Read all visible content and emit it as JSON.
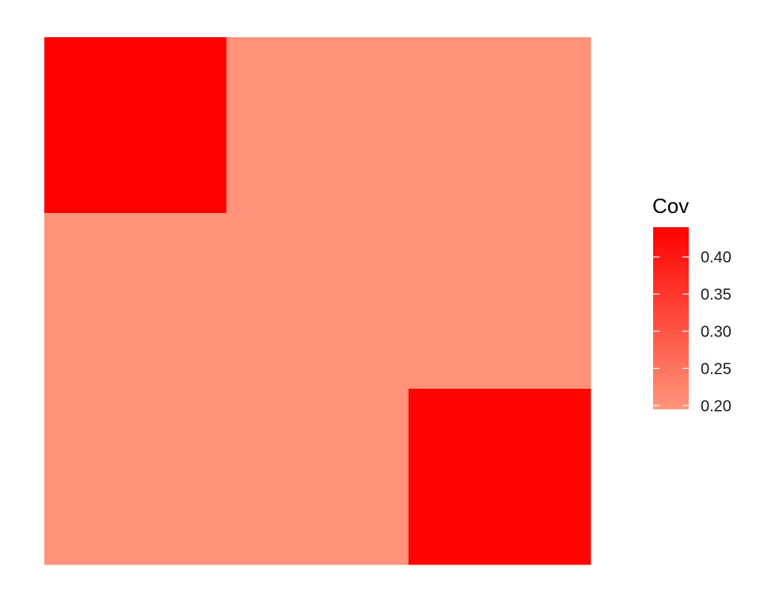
{
  "chart_data": {
    "type": "heatmap",
    "title": "",
    "xlabel": "",
    "ylabel": "",
    "rows": 3,
    "cols": 3,
    "values": [
      [
        0.44,
        0.2,
        0.2
      ],
      [
        0.2,
        0.2,
        0.2
      ],
      [
        0.2,
        0.2,
        0.43
      ]
    ],
    "legend": {
      "title": "Cov",
      "position": "right",
      "min": 0.195,
      "max": 0.44,
      "ticks": [
        0.2,
        0.25,
        0.3,
        0.35,
        0.4
      ],
      "tick_labels": [
        "0.20",
        "0.25",
        "0.30",
        "0.35",
        "0.40"
      ],
      "low_color": "#FF957A",
      "high_color": "#FF0000"
    },
    "grid": false
  }
}
